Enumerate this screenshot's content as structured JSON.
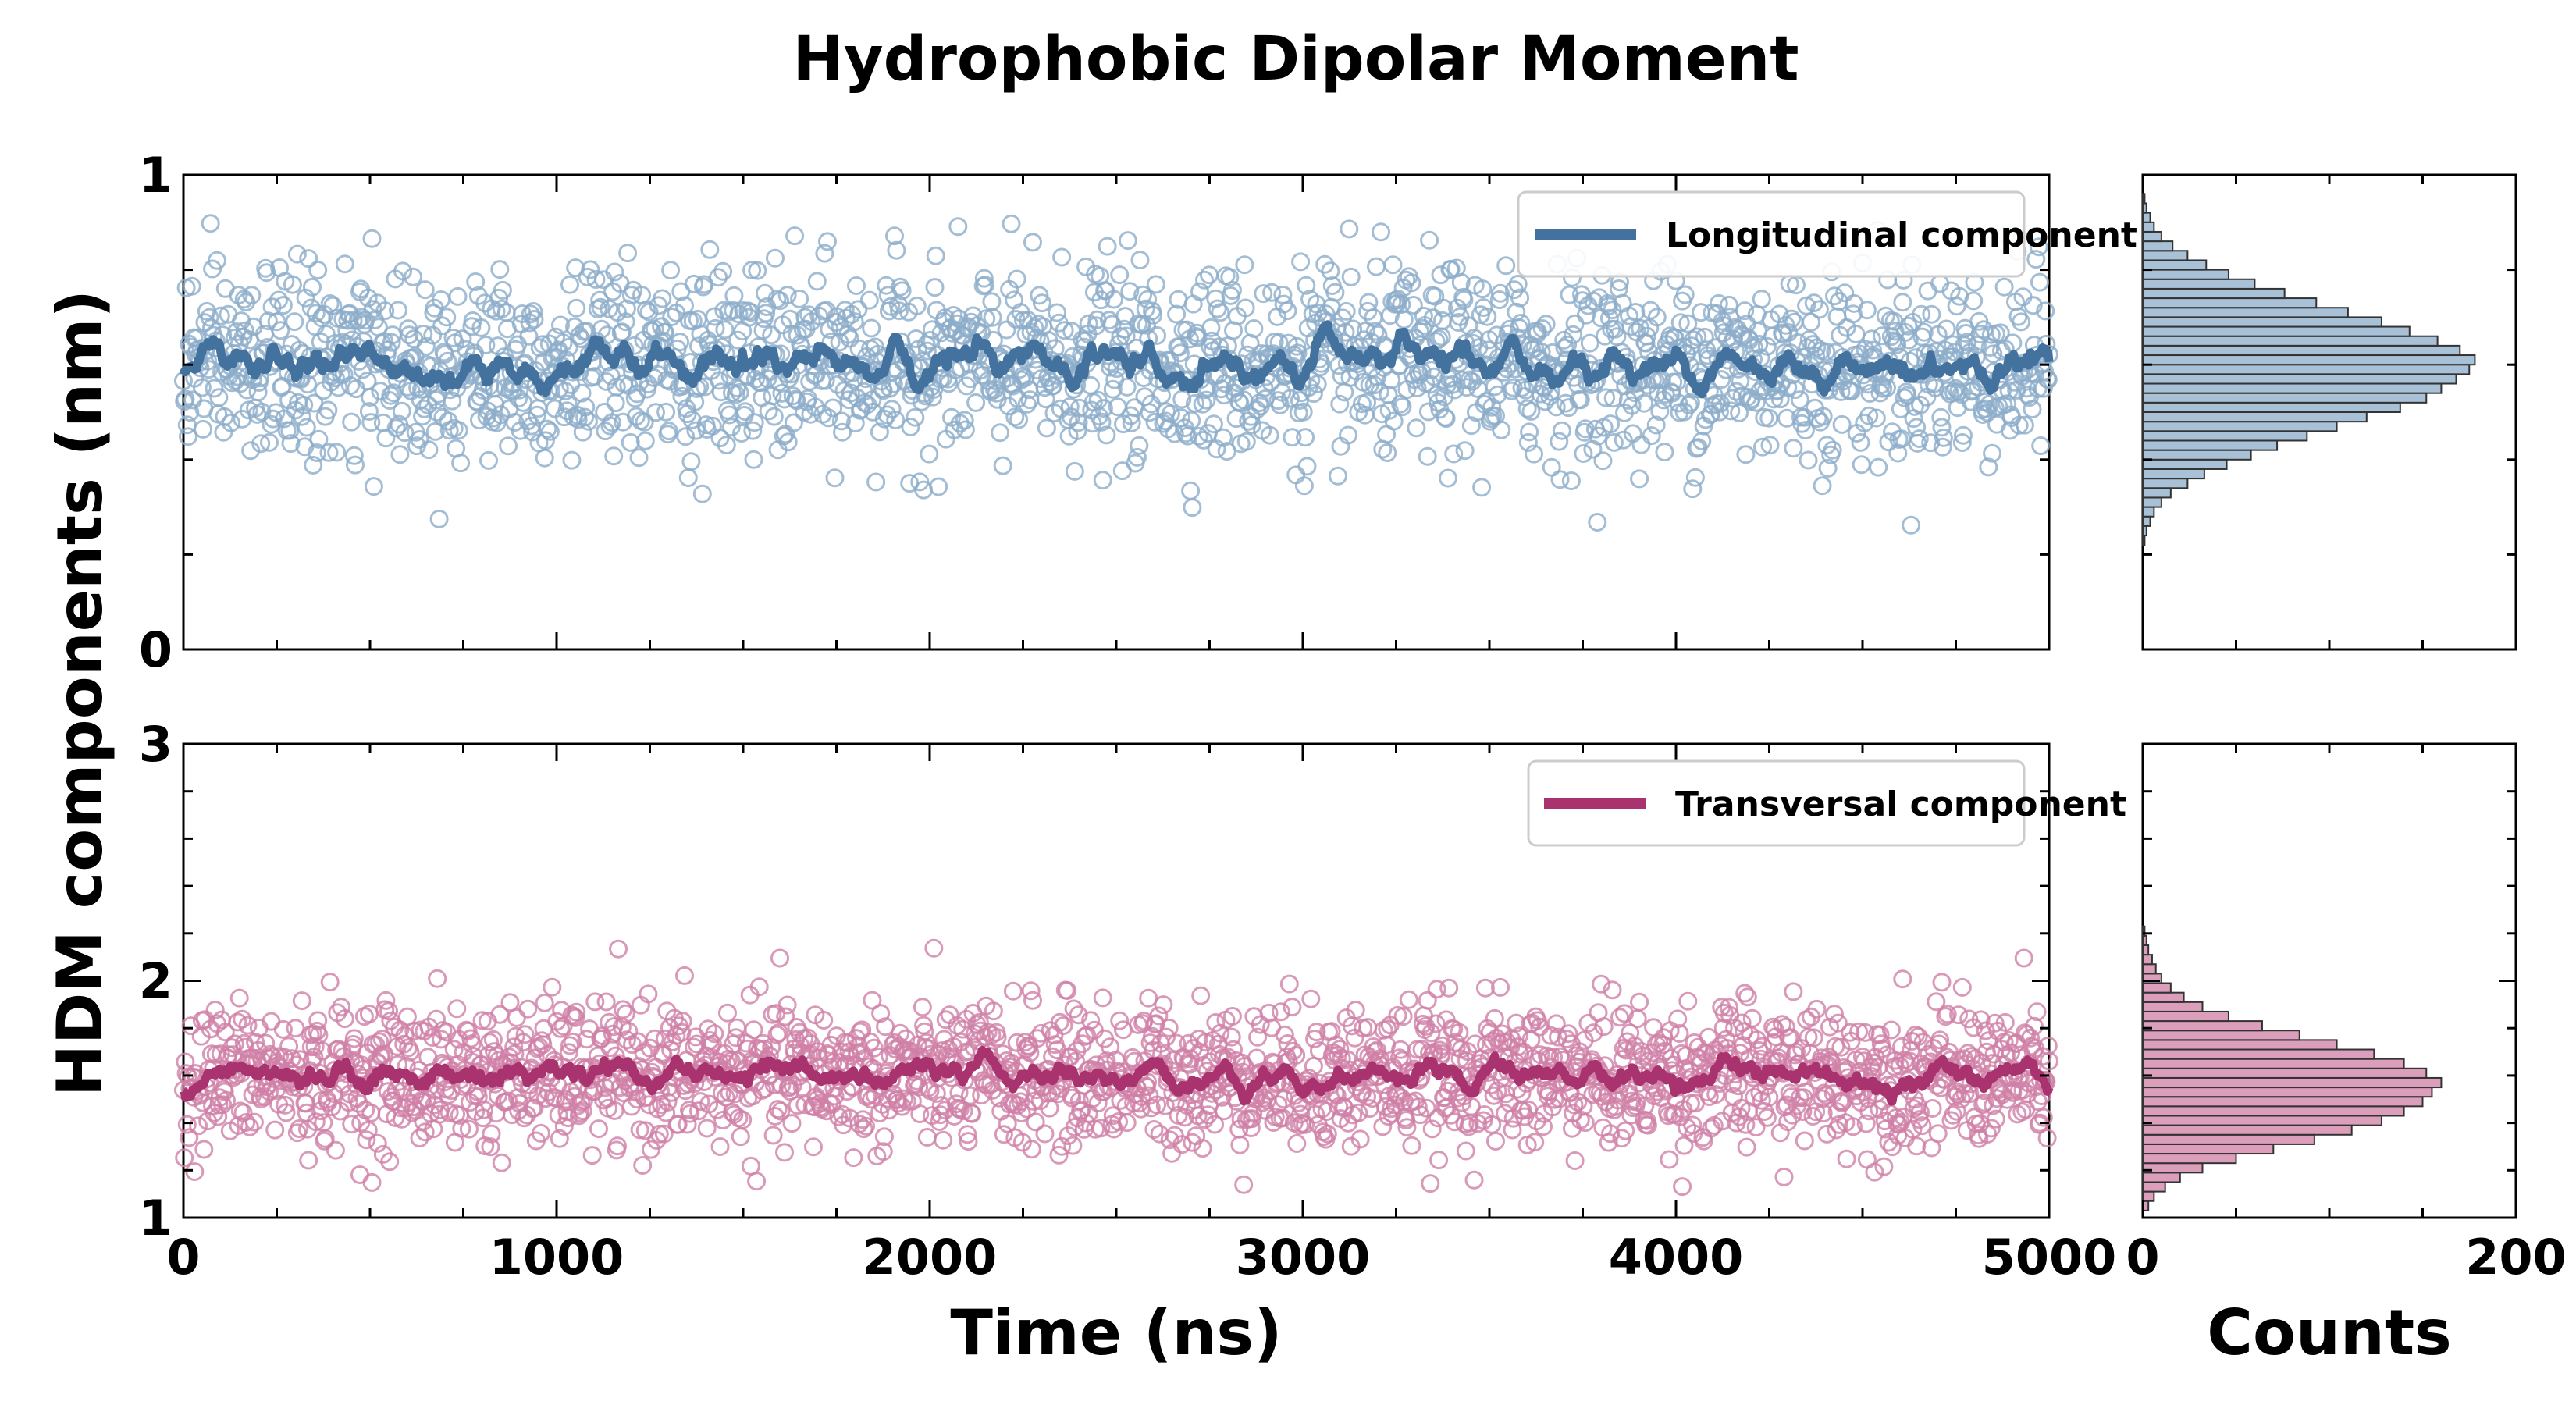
{
  "figure": {
    "title": "Hydrophobic Dipolar Moment",
    "ylabel": "HDM components (nm)",
    "xlabel": "Time (ns)",
    "hist_xlabel": "Counts"
  },
  "colors": {
    "longitudinal": "#43729f",
    "longitudinal_light": "#8cacc9",
    "transversal": "#a8336f",
    "transversal_light": "#cf7fa6",
    "axis": "#000000"
  },
  "chart_data": [
    {
      "type": "scatter",
      "panel": "top",
      "series": [
        {
          "name": "Longitudinal component",
          "style": "moving average line over circle markers",
          "n_points": 2000,
          "mean": 0.6,
          "std": 0.1
        }
      ],
      "x": {
        "label": "Time (ns)",
        "lim": [
          0,
          5000
        ],
        "ticks": [
          0,
          1000,
          2000,
          3000,
          4000,
          5000
        ]
      },
      "y": {
        "lim": [
          0,
          1
        ],
        "ticks": [
          0,
          1
        ],
        "minor_step": 0.2
      },
      "legend": "top-right"
    },
    {
      "type": "scatter",
      "panel": "bottom",
      "series": [
        {
          "name": "Transversal component",
          "style": "moving average line over circle markers",
          "n_points": 2000,
          "mean": 1.6,
          "std": 0.15
        }
      ],
      "x": {
        "label": "Time (ns)",
        "lim": [
          0,
          5000
        ],
        "ticks": [
          0,
          1000,
          2000,
          3000,
          4000,
          5000
        ],
        "tick_labels": [
          "0",
          "1000",
          "2000",
          "3000",
          "4000",
          "5000"
        ]
      },
      "y": {
        "lim": [
          1,
          3
        ],
        "ticks": [
          1,
          2,
          3
        ],
        "minor_step": 0.2
      },
      "legend": "top-right"
    },
    {
      "type": "bar",
      "panel": "top-histogram",
      "orientation": "horizontal",
      "bin_centers": [
        0.23,
        0.25,
        0.27,
        0.29,
        0.31,
        0.33,
        0.35,
        0.37,
        0.39,
        0.41,
        0.43,
        0.45,
        0.47,
        0.49,
        0.51,
        0.53,
        0.55,
        0.57,
        0.59,
        0.61,
        0.63,
        0.65,
        0.67,
        0.69,
        0.71,
        0.73,
        0.75,
        0.77,
        0.79,
        0.81,
        0.83,
        0.85,
        0.87,
        0.89,
        0.91,
        0.93,
        0.95
      ],
      "values": [
        1,
        2,
        4,
        6,
        10,
        15,
        24,
        33,
        45,
        58,
        72,
        88,
        104,
        120,
        138,
        152,
        160,
        168,
        175,
        178,
        170,
        158,
        143,
        128,
        110,
        93,
        76,
        60,
        46,
        34,
        24,
        16,
        10,
        6,
        4,
        2,
        1
      ],
      "xlim": [
        0,
        200
      ],
      "xticks": [
        0,
        200
      ],
      "ylim": [
        0,
        1
      ]
    },
    {
      "type": "bar",
      "panel": "bottom-histogram",
      "orientation": "horizontal",
      "bin_centers": [
        1.05,
        1.09,
        1.13,
        1.17,
        1.21,
        1.25,
        1.29,
        1.33,
        1.37,
        1.41,
        1.45,
        1.49,
        1.53,
        1.57,
        1.61,
        1.65,
        1.69,
        1.73,
        1.77,
        1.81,
        1.85,
        1.89,
        1.93,
        1.97,
        2.01,
        2.05,
        2.09,
        2.13,
        2.17,
        2.21
      ],
      "values": [
        3,
        6,
        12,
        20,
        32,
        50,
        70,
        92,
        112,
        128,
        140,
        150,
        155,
        160,
        152,
        140,
        124,
        104,
        84,
        64,
        46,
        32,
        22,
        15,
        10,
        7,
        5,
        3,
        2,
        1
      ],
      "xlim": [
        0,
        200
      ],
      "xticks": [
        0,
        200
      ],
      "xtick_labels": [
        "0",
        "200"
      ],
      "ylim": [
        1,
        3
      ]
    }
  ]
}
